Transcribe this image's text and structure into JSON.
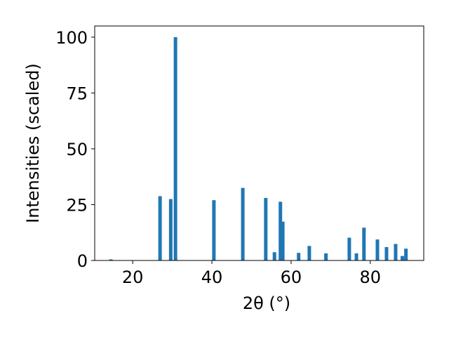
{
  "chart_data": {
    "type": "bar",
    "x_label": "2θ (°)",
    "y_label": "Intensities (scaled)",
    "x": [
      14.5,
      26.9,
      29.6,
      30.8,
      40.5,
      47.8,
      53.6,
      55.8,
      57.3,
      57.9,
      61.9,
      64.6,
      68.8,
      74.7,
      76.5,
      78.4,
      81.8,
      84.1,
      86.4,
      88.1,
      89.0
    ],
    "values": [
      0.5,
      28.8,
      27.5,
      100,
      27,
      32.5,
      28,
      3.7,
      26.3,
      17.4,
      3.4,
      6.5,
      3.2,
      10.2,
      3.2,
      14.7,
      9.4,
      6,
      7.4,
      2,
      5.3
    ],
    "color": "#1f77b4",
    "xlim": [
      10.4,
      93.5
    ],
    "xticks": [
      20,
      40,
      60,
      80
    ],
    "ylim": [
      0,
      105
    ],
    "yticks": [
      0,
      25,
      50,
      75,
      100
    ]
  }
}
